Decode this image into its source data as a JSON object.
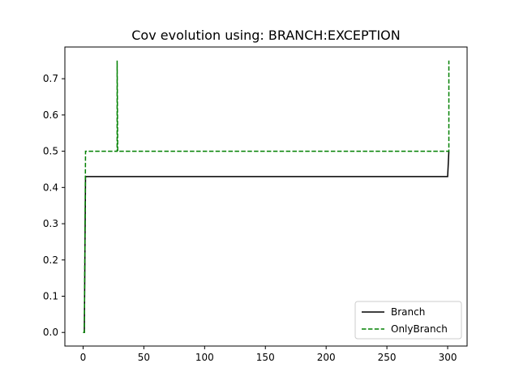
{
  "chart_data": {
    "type": "line",
    "title": "Cov evolution using: BRANCH:EXCEPTION",
    "xlabel": "",
    "ylabel": "",
    "xlim": [
      -15,
      316
    ],
    "ylim": [
      -0.0375,
      0.7875
    ],
    "xticks": [
      0,
      50,
      100,
      150,
      200,
      250,
      300
    ],
    "yticks": [
      0.0,
      0.1,
      0.2,
      0.3,
      0.4,
      0.5,
      0.6,
      0.7
    ],
    "ytick_labels": [
      "0.0",
      "0.1",
      "0.2",
      "0.3",
      "0.4",
      "0.5",
      "0.6",
      "0.7"
    ],
    "grid": false,
    "legend": {
      "position": "lower right",
      "entries": [
        "Branch",
        "OnlyBranch"
      ]
    },
    "series": [
      {
        "name": "Branch",
        "color": "#000000",
        "line_style": "solid",
        "x": [
          0,
          1,
          2,
          300,
          301
        ],
        "y": [
          0.0,
          0.0,
          0.43,
          0.43,
          0.5
        ]
      },
      {
        "name": "OnlyBranch",
        "color": "#008000",
        "line_style": "dashed",
        "x": [
          0,
          1,
          2,
          28,
          28,
          28.5,
          29,
          300,
          301,
          301
        ],
        "y": [
          0.0,
          0.0,
          0.5,
          0.5,
          0.75,
          0.5,
          0.5,
          0.5,
          0.5,
          0.75
        ]
      }
    ]
  }
}
